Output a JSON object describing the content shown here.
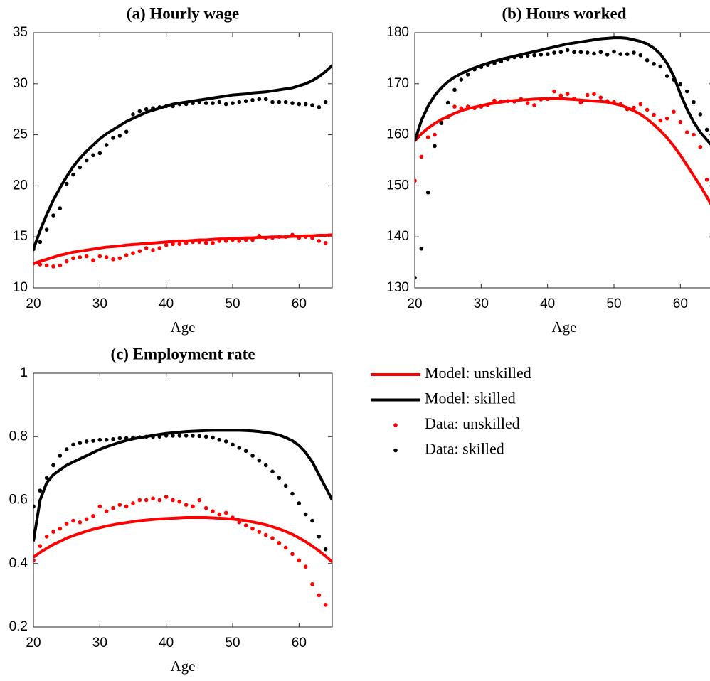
{
  "chart_data": [
    {
      "type": "line",
      "title": "(a) Hourly wage",
      "xlabel": "Age",
      "x": [
        20,
        21,
        22,
        23,
        24,
        25,
        26,
        27,
        28,
        29,
        30,
        31,
        32,
        33,
        34,
        35,
        36,
        37,
        38,
        39,
        40,
        41,
        42,
        43,
        44,
        45,
        46,
        47,
        48,
        49,
        50,
        51,
        52,
        53,
        54,
        55,
        56,
        57,
        58,
        59,
        60,
        61,
        62,
        63,
        64,
        65
      ],
      "xlim": [
        20,
        65
      ],
      "xticks": [
        20,
        30,
        40,
        50,
        60
      ],
      "ylim": [
        10,
        35
      ],
      "yticks": [
        10,
        15,
        20,
        25,
        30,
        35
      ],
      "series": [
        {
          "name": "Model: unskilled",
          "color": "#ff0000",
          "mode": "line",
          "values": [
            12.4,
            12.6,
            12.8,
            13.0,
            13.2,
            13.35,
            13.5,
            13.6,
            13.7,
            13.8,
            13.9,
            14.0,
            14.05,
            14.1,
            14.2,
            14.25,
            14.3,
            14.35,
            14.4,
            14.45,
            14.5,
            14.55,
            14.6,
            14.6,
            14.65,
            14.7,
            14.7,
            14.75,
            14.8,
            14.8,
            14.85,
            14.85,
            14.9,
            14.9,
            14.95,
            14.95,
            15.0,
            15.0,
            15.0,
            15.05,
            15.05,
            15.1,
            15.1,
            15.15,
            15.15,
            15.2
          ]
        },
        {
          "name": "Model: skilled",
          "color": "#000000",
          "mode": "line",
          "values": [
            13.8,
            15.6,
            17.2,
            18.6,
            19.8,
            20.9,
            21.9,
            22.7,
            23.4,
            24.0,
            24.6,
            25.1,
            25.5,
            25.9,
            26.3,
            26.6,
            26.9,
            27.2,
            27.4,
            27.6,
            27.8,
            28.0,
            28.1,
            28.2,
            28.3,
            28.4,
            28.5,
            28.6,
            28.7,
            28.8,
            28.9,
            28.95,
            29.0,
            29.1,
            29.15,
            29.2,
            29.3,
            29.4,
            29.5,
            29.6,
            29.8,
            30.0,
            30.3,
            30.7,
            31.2,
            31.8
          ]
        },
        {
          "name": "Data: unskilled",
          "color": "#ff0000",
          "mode": "markers",
          "values": [
            12.4,
            12.3,
            12.2,
            12.1,
            12.2,
            12.6,
            12.9,
            13.0,
            13.1,
            12.7,
            13.1,
            13.0,
            12.8,
            12.9,
            13.2,
            13.4,
            13.6,
            13.9,
            13.7,
            13.9,
            14.2,
            14.3,
            14.3,
            14.4,
            14.5,
            14.5,
            14.4,
            14.4,
            14.6,
            14.6,
            14.7,
            14.6,
            14.7,
            14.7,
            15.1,
            14.9,
            14.9,
            15.0,
            15.0,
            15.2,
            14.9,
            15.0,
            14.9,
            14.6,
            14.4,
            null
          ]
        },
        {
          "name": "Data: skilled",
          "color": "#000000",
          "mode": "markers",
          "values": [
            13.8,
            14.5,
            15.7,
            17.1,
            17.8,
            20.2,
            21.1,
            21.8,
            22.5,
            23.0,
            23.2,
            24.0,
            24.7,
            24.9,
            25.3,
            27.0,
            27.3,
            27.5,
            27.6,
            27.7,
            27.8,
            27.8,
            28.0,
            28.0,
            28.1,
            28.2,
            28.1,
            28.1,
            28.2,
            28.0,
            28.1,
            28.2,
            28.3,
            28.4,
            28.5,
            28.5,
            28.2,
            28.2,
            28.2,
            28.1,
            28.0,
            28.0,
            27.9,
            27.7,
            28.2,
            null
          ]
        }
      ]
    },
    {
      "type": "line",
      "title": "(b) Hours worked",
      "xlabel": "Age",
      "x": [
        20,
        21,
        22,
        23,
        24,
        25,
        26,
        27,
        28,
        29,
        30,
        31,
        32,
        33,
        34,
        35,
        36,
        37,
        38,
        39,
        40,
        41,
        42,
        43,
        44,
        45,
        46,
        47,
        48,
        49,
        50,
        51,
        52,
        53,
        54,
        55,
        56,
        57,
        58,
        59,
        60,
        61,
        62,
        63,
        64,
        65
      ],
      "xlim": [
        20,
        65
      ],
      "xticks": [
        20,
        30,
        40,
        50,
        60
      ],
      "ylim": [
        130,
        180
      ],
      "yticks": [
        130,
        140,
        150,
        160,
        170,
        180
      ],
      "series": [
        {
          "color": "#ff0000",
          "mode": "line",
          "values": [
            158.8,
            160.2,
            161.3,
            162.2,
            163.0,
            163.6,
            164.2,
            164.7,
            165.1,
            165.4,
            165.7,
            166.0,
            166.2,
            166.4,
            166.6,
            166.7,
            166.8,
            166.9,
            167.0,
            167.05,
            167.1,
            167.1,
            167.1,
            167.0,
            166.9,
            166.8,
            166.7,
            166.6,
            166.5,
            166.4,
            166.1,
            165.8,
            165.3,
            164.7,
            164.0,
            163.1,
            162.0,
            160.8,
            159.4,
            157.8,
            156.0,
            154.0,
            152.0,
            150.0,
            147.8,
            145.5
          ]
        },
        {
          "color": "#000000",
          "mode": "line",
          "values": [
            158.8,
            162.8,
            165.6,
            167.7,
            169.2,
            170.4,
            171.3,
            172.0,
            172.6,
            173.1,
            173.6,
            174.0,
            174.4,
            174.8,
            175.1,
            175.4,
            175.7,
            176.0,
            176.3,
            176.6,
            176.9,
            177.2,
            177.5,
            177.8,
            178.0,
            178.2,
            178.4,
            178.6,
            178.8,
            178.9,
            179.0,
            179.0,
            178.9,
            178.6,
            178.3,
            177.8,
            177.0,
            175.8,
            174.0,
            171.5,
            168.0,
            165.0,
            162.5,
            160.5,
            159.0,
            157.5
          ]
        },
        {
          "color": "#ff0000",
          "mode": "markers",
          "values": [
            151,
            155.7,
            159.5,
            160.0,
            162.4,
            163.5,
            165.5,
            165.2,
            165.5,
            165.2,
            165.5,
            165.8,
            166.7,
            166.5,
            166.6,
            166.5,
            167.0,
            166.2,
            165.8,
            166.9,
            167.0,
            168.5,
            167.7,
            168.0,
            167.1,
            166.3,
            167.8,
            168.0,
            167.3,
            166.6,
            166.4,
            166.0,
            165.0,
            165.3,
            166.0,
            164.9,
            163.9,
            162.8,
            163.2,
            164.5,
            162.5,
            160.5,
            160.0,
            157.6,
            151.2,
            null
          ]
        },
        {
          "color": "#000000",
          "mode": "markers",
          "values": [
            132,
            137.7,
            148.7,
            157.8,
            162.3,
            166.3,
            168.8,
            170.8,
            171.8,
            172.8,
            173.3,
            173.7,
            174.0,
            174.4,
            174.8,
            175.2,
            175.3,
            175.5,
            175.6,
            175.7,
            175.8,
            176.1,
            176.2,
            176.6,
            176.2,
            176.2,
            176.1,
            175.9,
            176.2,
            175.7,
            176.3,
            175.8,
            175.8,
            176.1,
            175.6,
            174.6,
            173.9,
            173.4,
            171.5,
            170.8,
            169.9,
            168.5,
            166.4,
            164.0,
            161.0,
            null
          ]
        }
      ]
    },
    {
      "type": "line",
      "title": "(c) Employment rate",
      "xlabel": "Age",
      "x": [
        20,
        21,
        22,
        23,
        24,
        25,
        26,
        27,
        28,
        29,
        30,
        31,
        32,
        33,
        34,
        35,
        36,
        37,
        38,
        39,
        40,
        41,
        42,
        43,
        44,
        45,
        46,
        47,
        48,
        49,
        50,
        51,
        52,
        53,
        54,
        55,
        56,
        57,
        58,
        59,
        60,
        61,
        62,
        63,
        64,
        65
      ],
      "xlim": [
        20,
        65
      ],
      "xticks": [
        20,
        30,
        40,
        50,
        60
      ],
      "ylim": [
        0.2,
        1
      ],
      "yticks": [
        0.2,
        0.4,
        0.6,
        0.8,
        1
      ],
      "series": [
        {
          "color": "#ff0000",
          "mode": "line",
          "values": [
            0.42,
            0.435,
            0.448,
            0.46,
            0.47,
            0.48,
            0.488,
            0.495,
            0.502,
            0.508,
            0.513,
            0.518,
            0.522,
            0.526,
            0.529,
            0.532,
            0.535,
            0.537,
            0.539,
            0.541,
            0.542,
            0.543,
            0.544,
            0.545,
            0.545,
            0.545,
            0.545,
            0.544,
            0.543,
            0.542,
            0.54,
            0.538,
            0.535,
            0.531,
            0.527,
            0.522,
            0.516,
            0.509,
            0.501,
            0.492,
            0.481,
            0.469,
            0.455,
            0.44,
            0.423,
            0.405
          ]
        },
        {
          "color": "#000000",
          "mode": "line",
          "values": [
            0.47,
            0.6,
            0.655,
            0.68,
            0.695,
            0.71,
            0.72,
            0.73,
            0.74,
            0.75,
            0.76,
            0.768,
            0.775,
            0.782,
            0.788,
            0.793,
            0.797,
            0.8,
            0.804,
            0.807,
            0.81,
            0.812,
            0.814,
            0.816,
            0.817,
            0.818,
            0.819,
            0.82,
            0.82,
            0.82,
            0.82,
            0.82,
            0.819,
            0.818,
            0.816,
            0.813,
            0.81,
            0.805,
            0.797,
            0.787,
            0.772,
            0.75,
            0.72,
            0.68,
            0.64,
            0.6
          ]
        },
        {
          "color": "#ff0000",
          "mode": "markers",
          "values": [
            0.41,
            0.455,
            0.485,
            0.5,
            0.51,
            0.525,
            0.535,
            0.53,
            0.54,
            0.55,
            0.58,
            0.565,
            0.575,
            0.585,
            0.58,
            0.59,
            0.6,
            0.6,
            0.605,
            0.6,
            0.61,
            0.6,
            0.595,
            0.585,
            0.58,
            0.6,
            0.575,
            0.565,
            0.555,
            0.56,
            0.545,
            0.53,
            0.52,
            0.51,
            0.5,
            0.49,
            0.48,
            0.465,
            0.45,
            0.43,
            0.41,
            0.39,
            0.335,
            0.3,
            0.27,
            null
          ]
        },
        {
          "color": "#000000",
          "mode": "markers",
          "values": [
            0.58,
            0.63,
            0.67,
            0.71,
            0.74,
            0.76,
            0.775,
            0.78,
            0.785,
            0.787,
            0.79,
            0.79,
            0.792,
            0.795,
            0.795,
            0.797,
            0.798,
            0.8,
            0.8,
            0.8,
            0.803,
            0.803,
            0.803,
            0.803,
            0.803,
            0.802,
            0.8,
            0.797,
            0.79,
            0.785,
            0.775,
            0.765,
            0.755,
            0.74,
            0.725,
            0.71,
            0.69,
            0.67,
            0.645,
            0.62,
            0.59,
            0.555,
            0.535,
            0.485,
            0.445,
            null
          ]
        }
      ]
    }
  ]
}
